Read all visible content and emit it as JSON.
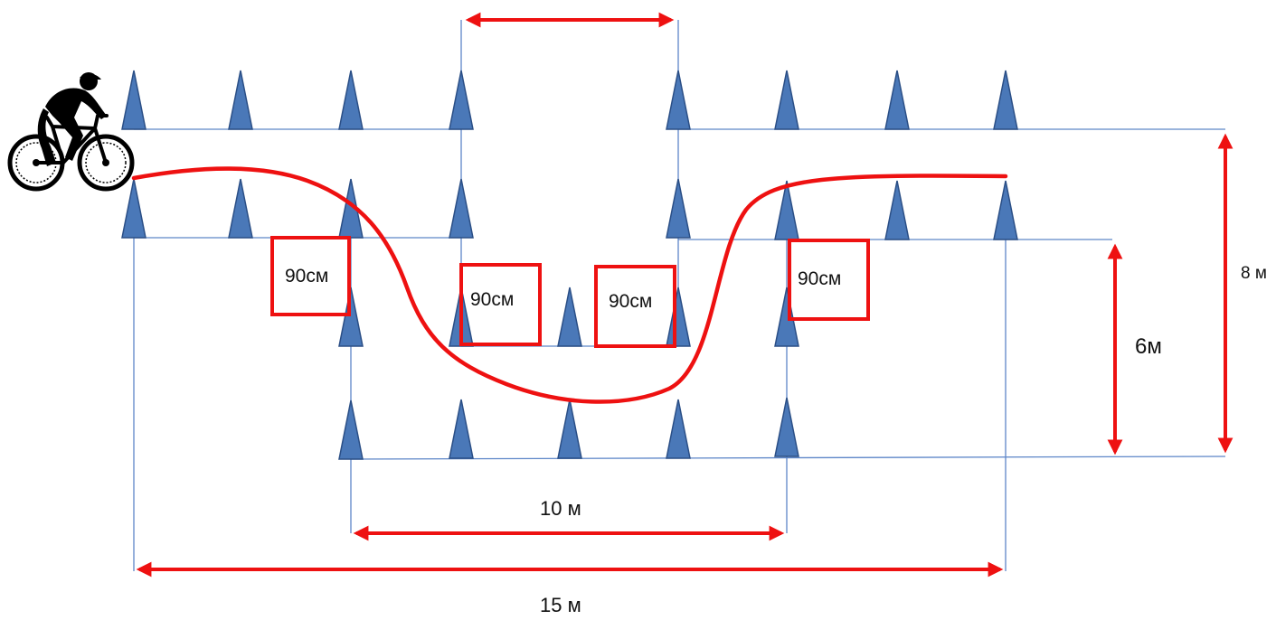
{
  "colors": {
    "cone_fill": "#4a78b8",
    "cone_stroke": "#2b4f86",
    "track": "#ee1111",
    "guide_line": "#5d86c8",
    "text": "#111111"
  },
  "icons": {
    "cyclist": "cyclist-icon",
    "cone": "cone-icon"
  },
  "boxes": [
    {
      "label": "90см"
    },
    {
      "label": "90см"
    },
    {
      "label": "90см"
    },
    {
      "label": "90см"
    }
  ],
  "dimensions": {
    "top_gap": "",
    "inner_width": "10 м",
    "outer_width": "15 м",
    "inner_depth": "6м",
    "outer_depth": "8 м"
  }
}
